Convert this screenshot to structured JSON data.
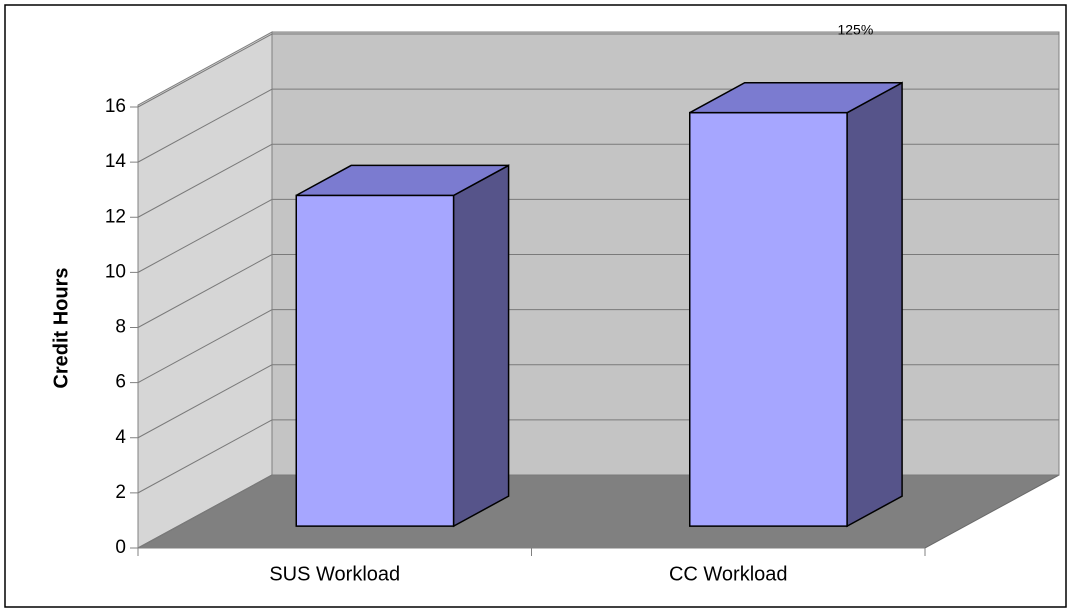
{
  "chart_data": {
    "type": "bar3d",
    "y_label": "Credit Hours",
    "categories": [
      "SUS Workload",
      "CC Workload"
    ],
    "values": [
      12,
      15
    ],
    "annotation": "125%",
    "color": "#a6a6ff",
    "ylim": [
      0,
      16
    ],
    "yticks": [
      0,
      2,
      4,
      6,
      8,
      10,
      12,
      14,
      16
    ],
    "grid": true
  }
}
